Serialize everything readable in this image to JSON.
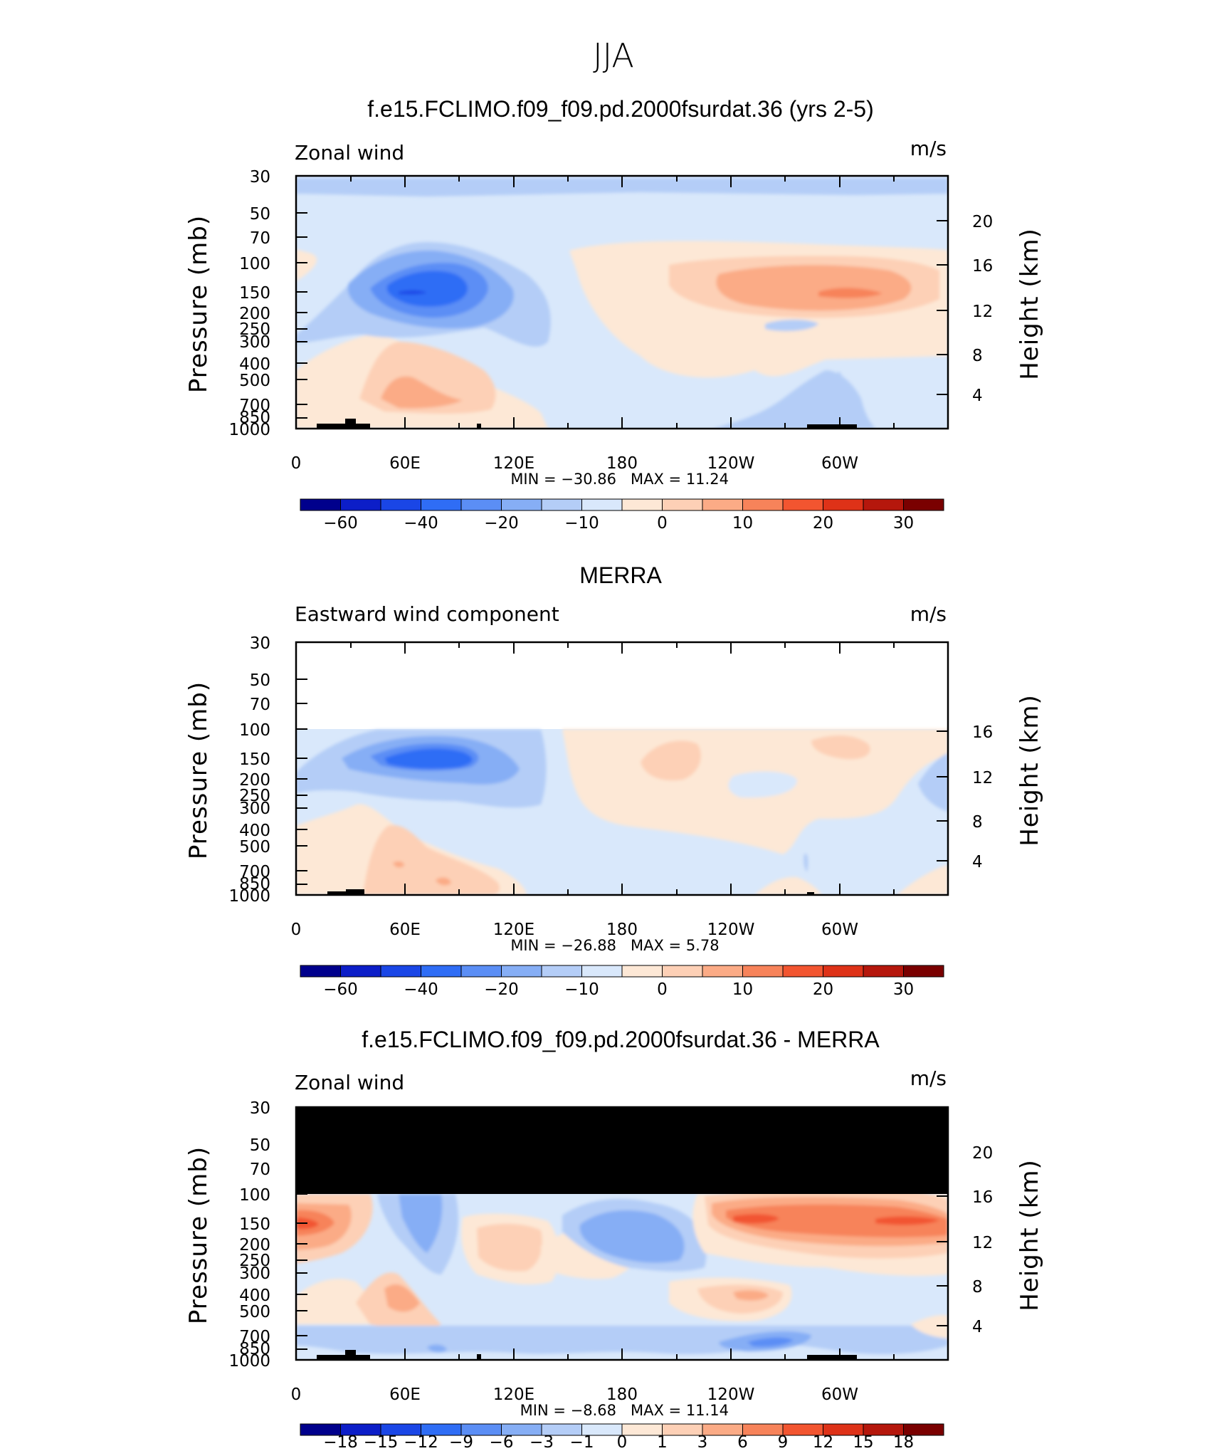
{
  "figure_title": "JJA",
  "colors": {
    "main_scale": [
      "#00008c",
      "#0c1ec8",
      "#1a46e6",
      "#2f6df5",
      "#5b8ef5",
      "#86aef5",
      "#b4cdf7",
      "#d9e8fb",
      "#fde8d6",
      "#fdd0b6",
      "#fbab86",
      "#f7835a",
      "#f25530",
      "#de3218",
      "#b5170c",
      "#7a0000"
    ],
    "land": "#000000"
  },
  "chart_data": [
    {
      "type": "heatmap",
      "title": "f.e15.FCLIMO.f09_f09.pd.2000fsurdat.36 (yrs 2-5)",
      "variable": "Zonal wind",
      "units": "m/s",
      "ylabel": "Pressure (mb)",
      "ylabel_right": "Height (km)",
      "y_ticks": [
        "30",
        "50",
        "70",
        "100",
        "150",
        "200",
        "250",
        "300",
        "400",
        "500",
        "700",
        "850",
        "1000"
      ],
      "y_ticks_right": [
        "20",
        "16",
        "12",
        "8",
        "4"
      ],
      "x_ticks": [
        "0",
        "60E",
        "120E",
        "180",
        "120W",
        "60W"
      ],
      "xlim": [
        0,
        360
      ],
      "min_label": "MIN  =  −30.86",
      "max_label": "MAX  =   11.24",
      "min": -30.86,
      "max": 11.24,
      "features": [
        {
          "kind": "jet",
          "value": -30,
          "lon": 70,
          "p": 150,
          "desc": "easterly jet core"
        },
        {
          "kind": "jet",
          "value": 10,
          "lon": 290,
          "p": 150,
          "desc": "westerly jet core"
        },
        {
          "kind": "jet",
          "value": 6,
          "lon": 60,
          "p": 700,
          "desc": "low-level westerly"
        }
      ],
      "colorbar": {
        "levels": [
          -60,
          -50,
          -40,
          -30,
          -20,
          -15,
          -10,
          -5,
          0,
          5,
          10,
          15,
          20,
          25,
          30
        ],
        "labels": [
          "−60",
          "−40",
          "−20",
          "−10",
          "0",
          "10",
          "20",
          "30"
        ]
      }
    },
    {
      "type": "heatmap",
      "title": "MERRA",
      "variable": "Eastward wind component",
      "units": "m/s",
      "ylabel": "Pressure (mb)",
      "ylabel_right": "Height (km)",
      "y_ticks": [
        "30",
        "50",
        "70",
        "100",
        "150",
        "200",
        "250",
        "300",
        "400",
        "500",
        "700",
        "850",
        "1000"
      ],
      "y_ticks_right": [
        "16",
        "12",
        "8",
        "4"
      ],
      "x_ticks": [
        "0",
        "60E",
        "120E",
        "180",
        "120W",
        "60W"
      ],
      "xlim": [
        0,
        360
      ],
      "min_label": "MIN  =  −26.88",
      "max_label": "MAX  =     5.78",
      "min": -26.88,
      "max": 5.78,
      "colorbar": {
        "levels": [
          -60,
          -50,
          -40,
          -30,
          -20,
          -15,
          -10,
          -5,
          0,
          5,
          10,
          15,
          20,
          25,
          30
        ],
        "labels": [
          "−60",
          "−40",
          "−20",
          "−10",
          "0",
          "10",
          "20",
          "30"
        ]
      }
    },
    {
      "type": "heatmap",
      "title": "f.e15.FCLIMO.f09_f09.pd.2000fsurdat.36 - MERRA",
      "variable": "Zonal wind",
      "units": "m/s",
      "ylabel": "Pressure (mb)",
      "ylabel_right": "Height (km)",
      "y_ticks": [
        "30",
        "50",
        "70",
        "100",
        "150",
        "200",
        "250",
        "300",
        "400",
        "500",
        "700",
        "850",
        "1000"
      ],
      "y_ticks_right": [
        "20",
        "16",
        "12",
        "8",
        "4"
      ],
      "x_ticks": [
        "0",
        "60E",
        "120E",
        "180",
        "120W",
        "60W"
      ],
      "xlim": [
        0,
        360
      ],
      "min_label": "MIN  =    −8.68",
      "max_label": "MAX  =   11.14",
      "min": -8.68,
      "max": 11.14,
      "colorbar": {
        "levels": [
          -18,
          -15,
          -12,
          -9,
          -6,
          -3,
          -1,
          0,
          1,
          3,
          6,
          9,
          12,
          15,
          18
        ],
        "labels": [
          "−18",
          "−15",
          "−12",
          "−9",
          "−6",
          "−3",
          "−1",
          "0",
          "1",
          "3",
          "6",
          "9",
          "12",
          "15",
          "18"
        ]
      }
    }
  ]
}
